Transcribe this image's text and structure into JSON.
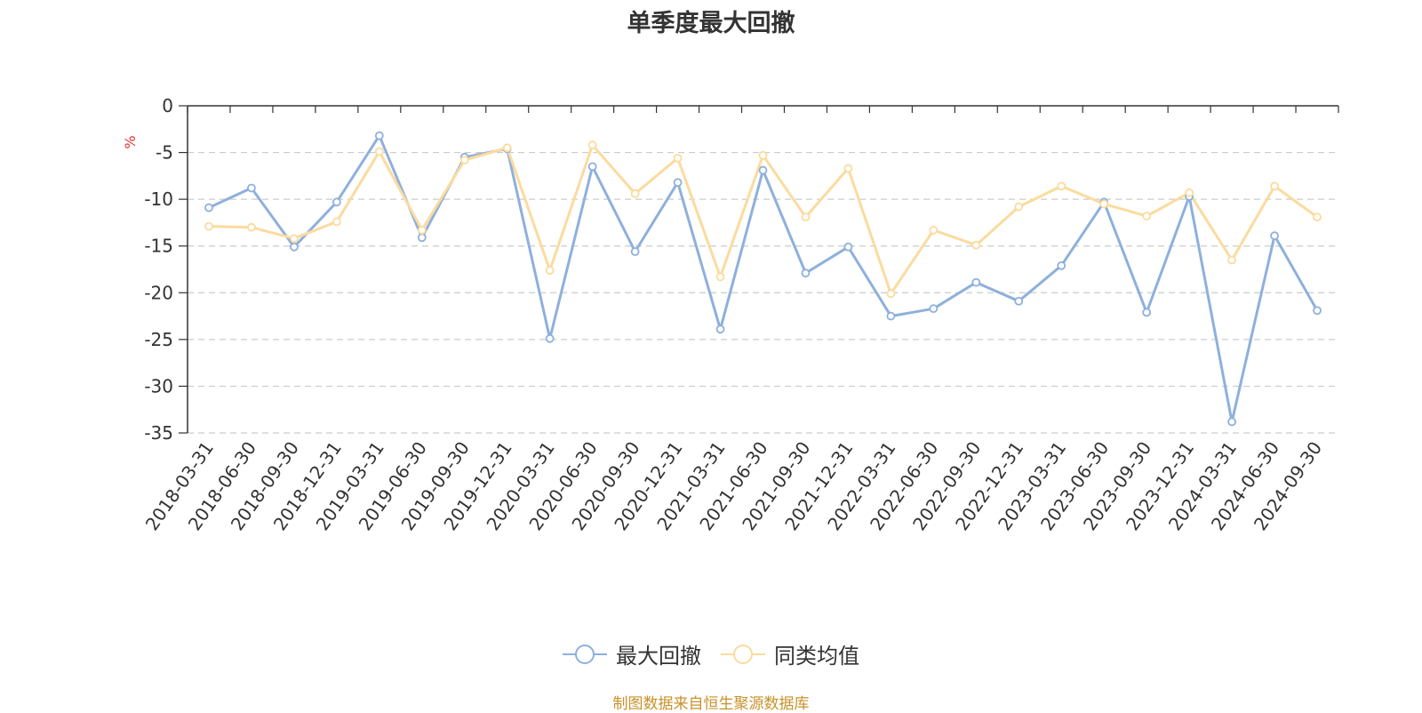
{
  "chart_data": {
    "type": "line",
    "title": "单季度最大回撤",
    "ylabel": "%",
    "xlabel": "",
    "ylim": [
      -35,
      0
    ],
    "yticks": [
      0,
      -5,
      -10,
      -15,
      -20,
      -25,
      -30,
      -35
    ],
    "grid": true,
    "legend_position": "bottom",
    "categories": [
      "2018-03-31",
      "2018-06-30",
      "2018-09-30",
      "2018-12-31",
      "2019-03-31",
      "2019-06-30",
      "2019-09-30",
      "2019-12-31",
      "2020-03-31",
      "2020-06-30",
      "2020-09-30",
      "2020-12-31",
      "2021-03-31",
      "2021-06-30",
      "2021-09-30",
      "2021-12-31",
      "2022-03-31",
      "2022-06-30",
      "2022-09-30",
      "2022-12-31",
      "2023-03-31",
      "2023-06-30",
      "2023-09-30",
      "2023-12-31",
      "2024-03-31",
      "2024-06-30",
      "2024-09-30"
    ],
    "series": [
      {
        "name": "最大回撤",
        "color": "#8eb0dc",
        "values": [
          -10.9,
          -8.8,
          -15.1,
          -10.3,
          -3.2,
          -14.1,
          -5.5,
          -4.6,
          -24.9,
          -6.5,
          -15.6,
          -8.2,
          -23.9,
          -6.9,
          -17.9,
          -15.1,
          -22.5,
          -21.7,
          -18.9,
          -20.9,
          -17.1,
          -10.3,
          -22.1,
          -9.7,
          -33.8,
          -13.9,
          -21.9
        ]
      },
      {
        "name": "同类均值",
        "color": "#fbdb9e",
        "values": [
          -12.9,
          -13.0,
          -14.2,
          -12.4,
          -4.9,
          -13.3,
          -5.8,
          -4.5,
          -17.6,
          -4.2,
          -9.4,
          -5.6,
          -18.3,
          -5.3,
          -11.9,
          -6.7,
          -20.1,
          -13.3,
          -14.9,
          -10.8,
          -8.6,
          -10.5,
          -11.8,
          -9.3,
          -16.5,
          -8.6,
          -11.9
        ]
      }
    ]
  },
  "source_text": "制图数据来自恒生聚源数据库"
}
